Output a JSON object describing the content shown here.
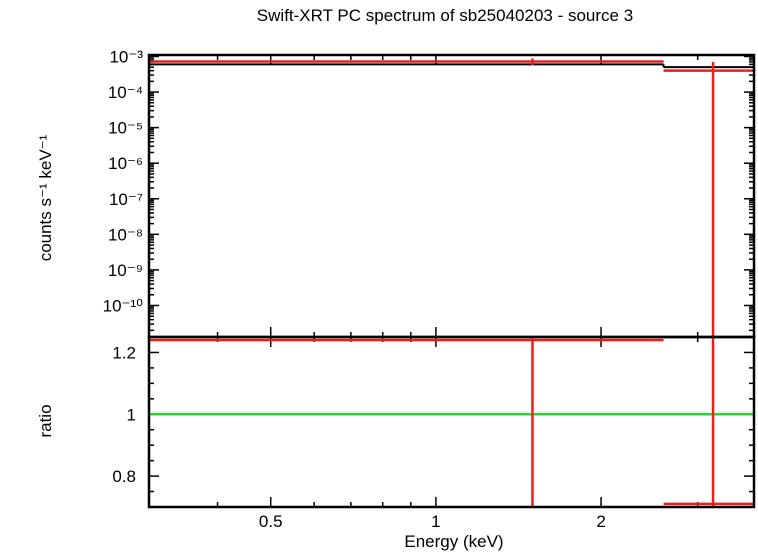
{
  "chart_data": [
    {
      "type": "scatter",
      "title": "Swift-XRT PC spectrum of sb25040203 - source 3",
      "xlabel": "Energy (keV)",
      "ylabel": "counts s⁻¹ keV⁻¹",
      "xscale": "log",
      "yscale": "log",
      "xlim": [
        0.3,
        3.8
      ],
      "ylim": [
        1.3e-11,
        0.0011
      ],
      "ytick_values": [
        0.001,
        0.0001,
        1e-05,
        1e-06,
        1e-07,
        1e-08,
        1e-09,
        1e-10
      ],
      "ytick_labels": [
        "10⁻³",
        "10⁻⁴",
        "10⁻⁵",
        "10⁻⁶",
        "10⁻⁷",
        "10⁻⁸",
        "10⁻⁹",
        "10⁻¹⁰"
      ],
      "series": [
        {
          "role": "data",
          "color": "#e8201a",
          "points": [
            {
              "x": 1.5,
              "xlo": 0.3,
              "xhi": 2.6,
              "y": 0.00072,
              "ylo": 0.00056,
              "yhi": 0.00088
            },
            {
              "x": 3.2,
              "xlo": 2.6,
              "xhi": 3.8,
              "y": 0.0004,
              "ylo": 1.3e-11,
              "yhi": 0.0007
            }
          ]
        },
        {
          "role": "model",
          "color": "#000000",
          "steps": [
            {
              "xlo": 0.3,
              "xhi": 2.6,
              "y": 0.0006
            },
            {
              "xlo": 2.6,
              "xhi": 3.8,
              "y": 0.0005
            }
          ]
        }
      ]
    },
    {
      "type": "scatter",
      "xlabel": "Energy (keV)",
      "ylabel": "ratio",
      "xscale": "log",
      "xlim": [
        0.3,
        3.8
      ],
      "ylim": [
        0.7,
        1.25
      ],
      "xtick_values": [
        0.5,
        1,
        2
      ],
      "xtick_labels": [
        "0.5",
        "1",
        "2"
      ],
      "ytick_values": [
        1.2,
        1,
        0.8
      ],
      "ytick_labels": [
        "1.2",
        "1",
        "0.8"
      ],
      "reference_line": {
        "y": 1,
        "color": "#22dd22"
      },
      "series": [
        {
          "role": "ratio",
          "color": "#e8201a",
          "points": [
            {
              "x": 1.5,
              "xlo": 0.3,
              "xhi": 2.6,
              "y": 1.24,
              "ylo": 0.7,
              "yhi": 1.25
            },
            {
              "x": 3.2,
              "xlo": 2.6,
              "xhi": 3.8,
              "y": 0.71,
              "ylo": 0.7,
              "yhi": 1.25
            }
          ]
        }
      ]
    }
  ]
}
